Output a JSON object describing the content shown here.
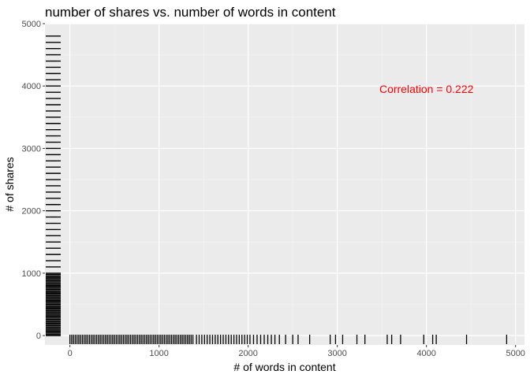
{
  "chart_data": {
    "type": "scatter",
    "title": "number of shares vs. number of words in content",
    "xlabel": "# of words in content",
    "ylabel": "# of shares",
    "xlim": [
      -280,
      5100
    ],
    "ylim": [
      -150,
      5000
    ],
    "xticks": [
      0,
      1000,
      2000,
      3000,
      4000,
      5000
    ],
    "yticks": [
      0,
      1000,
      2000,
      3000,
      4000,
      5000
    ],
    "xtick_labels": [
      "0",
      "1000",
      "2000",
      "3000",
      "4000",
      "5000"
    ],
    "ytick_labels": [
      "0",
      "1000",
      "2000",
      "3000",
      "4000",
      "5000"
    ],
    "grid": true,
    "legend": "none",
    "point_color": "#000000",
    "annotation": {
      "text": "Correlation = 0.222",
      "x": 4000,
      "y": 3950,
      "color": "#ff0000"
    },
    "series": [
      {
        "rug_x": [
          0,
          20,
          40,
          60,
          80,
          100,
          120,
          140,
          160,
          180,
          200,
          220,
          240,
          260,
          280,
          300,
          320,
          340,
          360,
          380,
          400,
          420,
          440,
          460,
          480,
          500,
          520,
          540,
          560,
          580,
          600,
          620,
          640,
          660,
          680,
          700,
          720,
          740,
          760,
          780,
          800,
          820,
          840,
          860,
          880,
          900,
          920,
          940,
          960,
          980,
          1000,
          1020,
          1040,
          1060,
          1080,
          1100,
          1120,
          1140,
          1160,
          1180,
          1200,
          1220,
          1240,
          1260,
          1280,
          1300,
          1320,
          1340,
          1360,
          1380,
          1420,
          1450,
          1480,
          1510,
          1540,
          1570,
          1600,
          1630,
          1660,
          1690,
          1720,
          1750,
          1780,
          1810,
          1840,
          1870,
          1900,
          1930,
          1960,
          1990,
          2020,
          2060,
          2100,
          2140,
          2180,
          2220,
          2260,
          2300,
          2350,
          2420,
          2500,
          2560,
          2690,
          2920,
          2980,
          3060,
          3220,
          3310,
          3560,
          3610,
          3710,
          3970,
          4070,
          4110,
          4450,
          4900
        ],
        "rug_y": [
          0,
          20,
          40,
          60,
          80,
          100,
          120,
          140,
          160,
          180,
          200,
          220,
          240,
          260,
          280,
          300,
          320,
          340,
          360,
          380,
          400,
          420,
          440,
          460,
          480,
          500,
          520,
          540,
          560,
          580,
          600,
          620,
          640,
          660,
          680,
          700,
          720,
          740,
          760,
          780,
          800,
          820,
          840,
          860,
          880,
          900,
          920,
          940,
          960,
          980,
          1000,
          1100,
          1200,
          1300,
          1400,
          1500,
          1600,
          1700,
          1800,
          1900,
          2000,
          2100,
          2200,
          2300,
          2400,
          2500,
          2600,
          2700,
          2800,
          2900,
          3000,
          3100,
          3200,
          3300,
          3400,
          3500,
          3600,
          3700,
          3800,
          3900,
          4000,
          4100,
          4200,
          4300,
          4400,
          4500,
          4600,
          4700,
          4800
        ]
      }
    ]
  }
}
